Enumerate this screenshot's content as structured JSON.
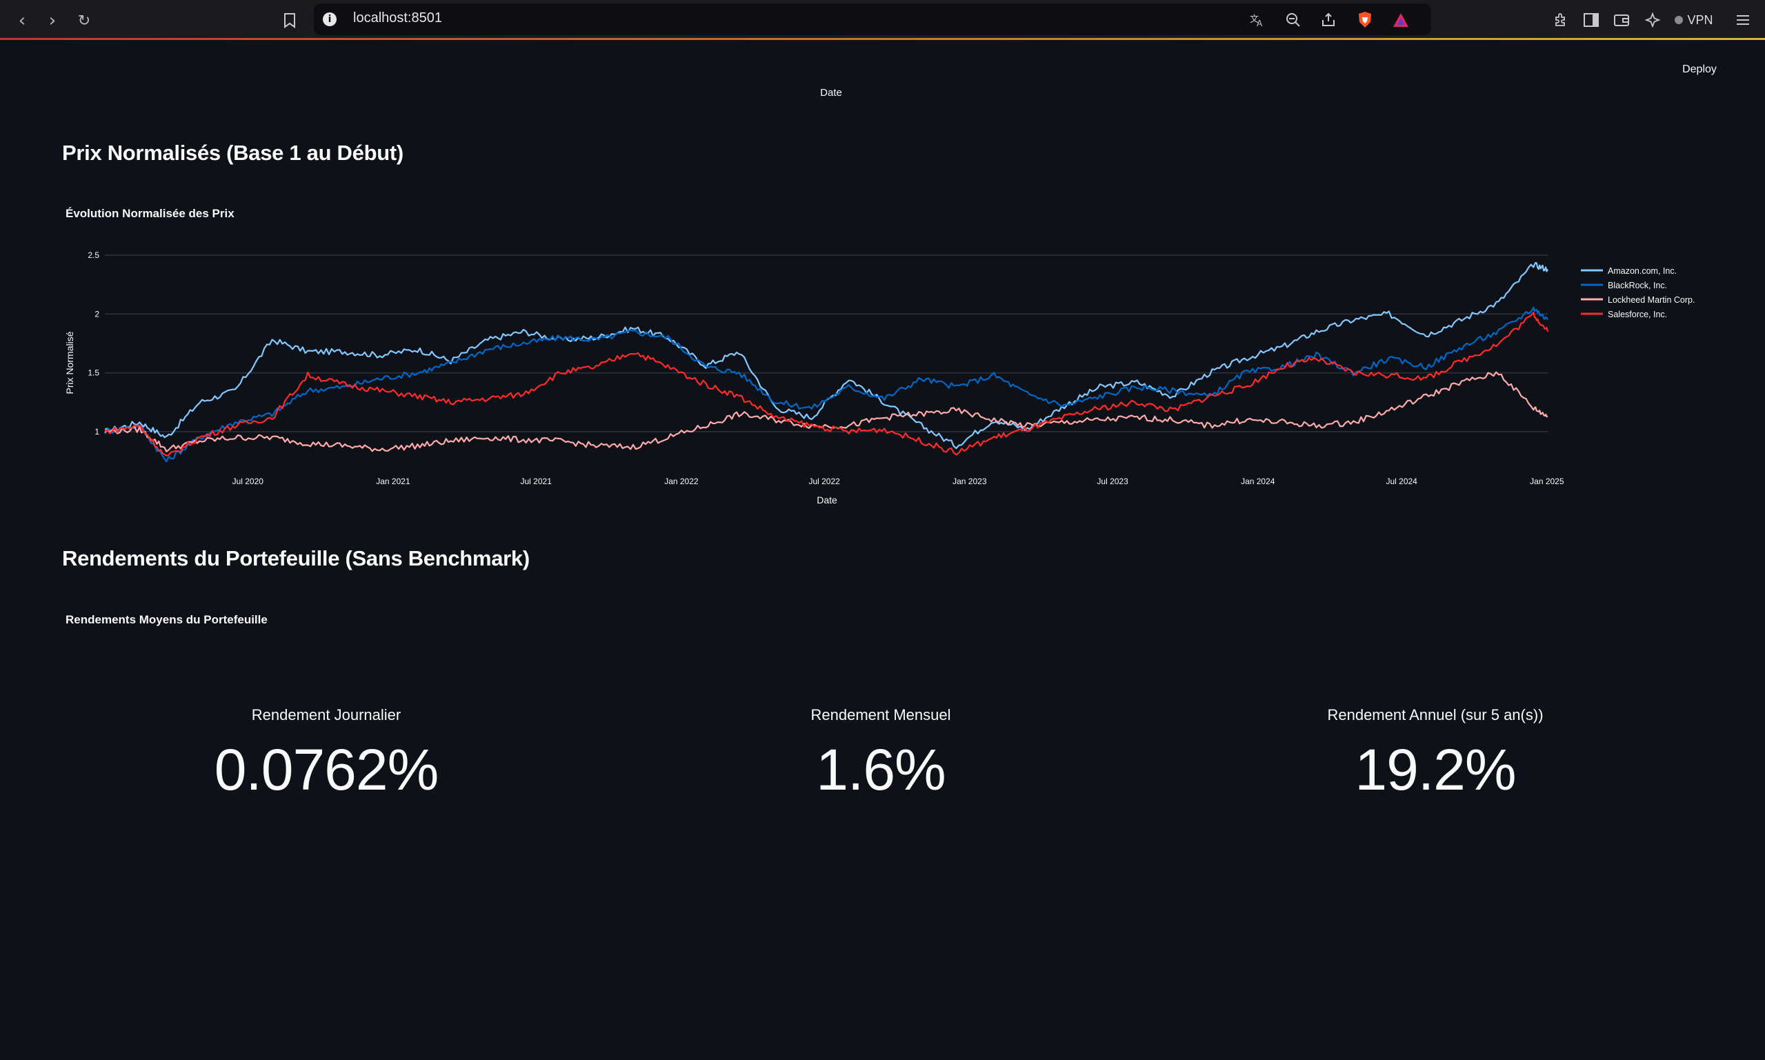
{
  "browser": {
    "url": "localhost:8501",
    "vpn_label": "VPN"
  },
  "app": {
    "deploy_label": "Deploy",
    "top_axis_label": "Date",
    "section1_title": "Prix Normalisés (Base 1 au Début)",
    "section2_title": "Rendements du Portefeuille (Sans Benchmark)",
    "returns_chart_title": "Rendements Moyens du Portefeuille",
    "metrics": [
      {
        "label": "Rendement Journalier",
        "value": "0.0762%"
      },
      {
        "label": "Rendement Mensuel",
        "value": "1.6%"
      },
      {
        "label": "Rendement Annuel (sur 5 an(s))",
        "value": "19.2%"
      }
    ]
  },
  "chart_data": {
    "type": "line",
    "title": "Évolution Normalisée des Prix",
    "xlabel": "Date",
    "ylabel": "Prix Normalisé",
    "xlim": [
      "2020-01-02",
      "2025-01-02"
    ],
    "ylim": [
      0.8,
      2.5
    ],
    "y_ticks": [
      1,
      1.5,
      2,
      2.5
    ],
    "y_tick_labels": [
      "1",
      "1.5",
      "2",
      "2.5"
    ],
    "x_ticks": [
      "2020-07-01",
      "2021-01-01",
      "2021-07-01",
      "2022-01-01",
      "2022-07-01",
      "2023-01-01",
      "2023-07-01",
      "2024-01-01",
      "2024-07-01",
      "2025-01-01"
    ],
    "x_tick_labels": [
      "Jul 2020",
      "Jan 2021",
      "Jul 2021",
      "Jan 2022",
      "Jul 2022",
      "Jan 2023",
      "Jul 2023",
      "Jan 2024",
      "Jul 2024",
      "Jan 2025"
    ],
    "grid": true,
    "legend_position": "top-right",
    "x": [
      "2020-01-02",
      "2020-02-15",
      "2020-03-20",
      "2020-05-01",
      "2020-06-15",
      "2020-08-01",
      "2020-09-15",
      "2020-11-01",
      "2020-12-15",
      "2021-02-01",
      "2021-03-15",
      "2021-05-01",
      "2021-06-15",
      "2021-08-01",
      "2021-09-15",
      "2021-11-01",
      "2021-12-15",
      "2022-02-01",
      "2022-03-15",
      "2022-05-01",
      "2022-06-15",
      "2022-08-01",
      "2022-09-15",
      "2022-11-01",
      "2022-12-15",
      "2023-02-01",
      "2023-03-15",
      "2023-05-01",
      "2023-06-15",
      "2023-08-01",
      "2023-09-15",
      "2023-11-01",
      "2023-12-15",
      "2024-02-01",
      "2024-03-15",
      "2024-05-01",
      "2024-06-15",
      "2024-08-01",
      "2024-09-15",
      "2024-11-01",
      "2024-12-15",
      "2025-01-02"
    ],
    "series": [
      {
        "name": "Amazon.com, Inc.",
        "color": "#83c9ff",
        "values": [
          1.0,
          1.08,
          0.95,
          1.25,
          1.35,
          1.78,
          1.68,
          1.68,
          1.65,
          1.7,
          1.6,
          1.78,
          1.85,
          1.78,
          1.8,
          1.88,
          1.8,
          1.56,
          1.68,
          1.2,
          1.12,
          1.45,
          1.25,
          1.05,
          0.88,
          1.1,
          1.02,
          1.22,
          1.38,
          1.42,
          1.3,
          1.5,
          1.62,
          1.72,
          1.85,
          1.95,
          2.0,
          1.82,
          1.95,
          2.1,
          2.42,
          2.38
        ]
      },
      {
        "name": "BlackRock, Inc.",
        "color": "#0068c9",
        "values": [
          1.0,
          1.05,
          0.75,
          0.95,
          1.08,
          1.15,
          1.35,
          1.38,
          1.45,
          1.5,
          1.58,
          1.7,
          1.75,
          1.8,
          1.78,
          1.85,
          1.8,
          1.55,
          1.5,
          1.25,
          1.2,
          1.38,
          1.28,
          1.45,
          1.38,
          1.48,
          1.32,
          1.22,
          1.3,
          1.38,
          1.35,
          1.3,
          1.5,
          1.55,
          1.65,
          1.5,
          1.62,
          1.55,
          1.72,
          1.85,
          2.05,
          1.95
        ]
      },
      {
        "name": "Lockheed Martin Corp.",
        "color": "#ffabab",
        "values": [
          1.0,
          1.02,
          0.85,
          0.92,
          0.95,
          0.95,
          0.9,
          0.88,
          0.85,
          0.88,
          0.92,
          0.95,
          0.93,
          0.92,
          0.88,
          0.87,
          0.95,
          1.05,
          1.15,
          1.1,
          1.05,
          1.05,
          1.12,
          1.15,
          1.18,
          1.1,
          1.05,
          1.08,
          1.1,
          1.12,
          1.1,
          1.05,
          1.1,
          1.08,
          1.05,
          1.08,
          1.18,
          1.3,
          1.42,
          1.5,
          1.2,
          1.13
        ]
      },
      {
        "name": "Salesforce, Inc.",
        "color": "#ff2b2b",
        "values": [
          1.0,
          1.05,
          0.78,
          0.95,
          1.05,
          1.12,
          1.48,
          1.4,
          1.35,
          1.3,
          1.25,
          1.28,
          1.32,
          1.5,
          1.55,
          1.68,
          1.55,
          1.4,
          1.3,
          1.12,
          1.05,
          1.0,
          1.02,
          0.92,
          0.82,
          0.95,
          1.02,
          1.12,
          1.2,
          1.25,
          1.18,
          1.3,
          1.38,
          1.55,
          1.62,
          1.5,
          1.48,
          1.45,
          1.6,
          1.75,
          2.0,
          1.85
        ]
      }
    ]
  }
}
